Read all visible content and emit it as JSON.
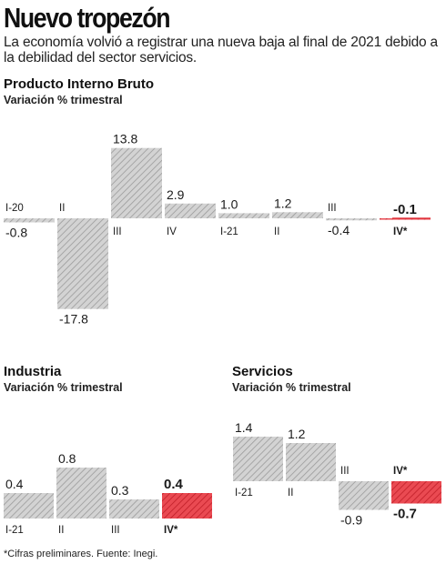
{
  "header": {
    "title": "Nuevo tropezón",
    "subtitle": "La economía volvió a registrar una nueva baja al final de 2021 debido a la debilidad del sector servicios."
  },
  "footer": {
    "source": "*Cifras preliminares. Fuente: Inegi."
  },
  "colors": {
    "bar": "#b5b5b5",
    "highlight": "#e0333c",
    "text": "#1a1a1a"
  },
  "chart_data": [
    {
      "type": "bar",
      "title": "Producto Interno Bruto",
      "ylabel": "Variación % trimestral",
      "categories": [
        "I-20",
        "II",
        "III",
        "IV",
        "I-21",
        "II",
        "III",
        "IV*"
      ],
      "values": [
        -0.8,
        -17.8,
        13.8,
        2.9,
        1.0,
        1.2,
        -0.4,
        -0.1
      ],
      "value_labels": [
        "-0.8",
        "-17.8",
        "13.8",
        "2.9",
        "1.0",
        "1.2",
        "-0.4",
        "-0.1"
      ],
      "highlight_index": 7
    },
    {
      "type": "bar",
      "title": "Industria",
      "ylabel": "Variación % trimestral",
      "categories": [
        "I-21",
        "II",
        "III",
        "IV*"
      ],
      "values": [
        0.4,
        0.8,
        0.3,
        0.4
      ],
      "value_labels": [
        "0.4",
        "0.8",
        "0.3",
        "0.4"
      ],
      "highlight_index": 3
    },
    {
      "type": "bar",
      "title": "Servicios",
      "ylabel": "Variación % trimestral",
      "categories": [
        "I-21",
        "II",
        "III",
        "IV*"
      ],
      "values": [
        1.4,
        1.2,
        -0.9,
        -0.7
      ],
      "value_labels": [
        "1.4",
        "1.2",
        "-0.9",
        "-0.7"
      ],
      "highlight_index": 3
    }
  ]
}
